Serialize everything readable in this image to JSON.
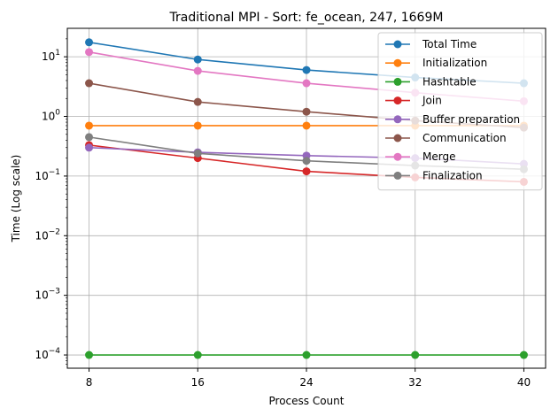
{
  "chart_data": {
    "type": "line",
    "title": "Traditional MPI - Sort: fe_ocean, 247, 1669M",
    "xlabel": "Process Count",
    "ylabel": "Time (Log scale)",
    "yscale": "log",
    "ylim": [
      6e-05,
      30
    ],
    "grid": true,
    "legend_placement": "top-right",
    "x": [
      8,
      16,
      24,
      32,
      40
    ],
    "x_ticks": [
      "8",
      "16",
      "24",
      "32",
      "40"
    ],
    "y_ticks": [
      {
        "value": 0.0001,
        "base": "10",
        "exp": "−4"
      },
      {
        "value": 0.001,
        "base": "10",
        "exp": "−3"
      },
      {
        "value": 0.01,
        "base": "10",
        "exp": "−2"
      },
      {
        "value": 0.1,
        "base": "10",
        "exp": "−1"
      },
      {
        "value": 1,
        "base": "10",
        "exp": "0"
      },
      {
        "value": 10,
        "base": "10",
        "exp": "1"
      }
    ],
    "series": [
      {
        "name": "Total Time",
        "color": "#1f77b4",
        "values": [
          17.5,
          9.0,
          6.0,
          4.5,
          3.6
        ]
      },
      {
        "name": "Initialization",
        "color": "#ff7f0e",
        "values": [
          0.7,
          0.7,
          0.7,
          0.7,
          0.7
        ]
      },
      {
        "name": "Hashtable",
        "color": "#2ca02c",
        "values": [
          0.0001,
          0.0001,
          0.0001,
          0.0001,
          0.0001
        ]
      },
      {
        "name": "Join",
        "color": "#d62728",
        "values": [
          0.33,
          0.2,
          0.12,
          0.095,
          0.08
        ]
      },
      {
        "name": "Buffer preparation",
        "color": "#9467bd",
        "values": [
          0.3,
          0.25,
          0.22,
          0.2,
          0.16
        ]
      },
      {
        "name": "Communication",
        "color": "#8c564b",
        "values": [
          3.6,
          1.75,
          1.2,
          0.85,
          0.65
        ]
      },
      {
        "name": "Merge",
        "color": "#e377c2",
        "values": [
          12.0,
          5.8,
          3.6,
          2.5,
          1.8
        ]
      },
      {
        "name": "Finalization",
        "color": "#7f7f7f",
        "values": [
          0.45,
          0.24,
          0.18,
          0.15,
          0.13
        ]
      }
    ]
  }
}
